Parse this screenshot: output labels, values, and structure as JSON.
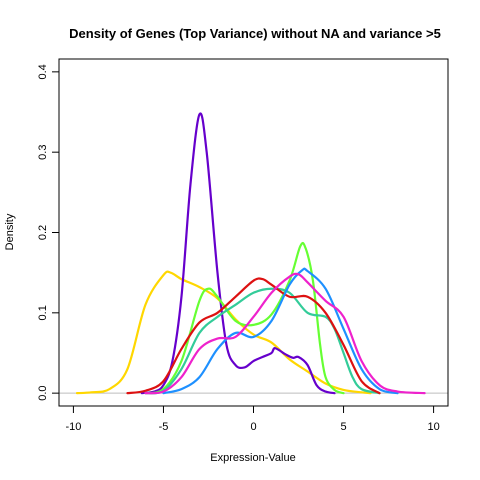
{
  "chart_data": {
    "type": "line",
    "title": "Density of Genes (Top Variance) without NA and variance >5",
    "xlabel": "Expression-Value",
    "ylabel": "Density",
    "xlim": [
      -10.8,
      10.8
    ],
    "ylim": [
      -0.016,
      0.416
    ],
    "x_ticks": [
      -10,
      -5,
      0,
      5,
      10
    ],
    "y_ticks": [
      0.0,
      0.1,
      0.2,
      0.3,
      0.4
    ],
    "x_tick_labels": [
      "-10",
      "-5",
      "0",
      "5",
      "10"
    ],
    "y_tick_labels": [
      "0.0",
      "0.1",
      "0.2",
      "0.3",
      "0.4"
    ],
    "grid": false,
    "baseline_color": "#BEBEBE",
    "series": [
      {
        "color": "#FFD700",
        "points": [
          [
            -9.8,
            0
          ],
          [
            -9,
            0.001
          ],
          [
            -8,
            0.005
          ],
          [
            -7,
            0.03
          ],
          [
            -6,
            0.11
          ],
          [
            -5,
            0.147
          ],
          [
            -4.6,
            0.15
          ],
          [
            -4,
            0.142
          ],
          [
            -3,
            0.132
          ],
          [
            -2,
            0.118
          ],
          [
            -1,
            0.092
          ],
          [
            0,
            0.073
          ],
          [
            1,
            0.063
          ],
          [
            2,
            0.042
          ],
          [
            3,
            0.027
          ],
          [
            4,
            0.012
          ],
          [
            5,
            0.004
          ],
          [
            6,
            0.001
          ],
          [
            6.5,
            0
          ]
        ]
      },
      {
        "color": "#6600CC",
        "points": [
          [
            -6.2,
            0
          ],
          [
            -5.5,
            0.002
          ],
          [
            -5,
            0.01
          ],
          [
            -4.5,
            0.04
          ],
          [
            -4,
            0.12
          ],
          [
            -3.5,
            0.26
          ],
          [
            -3,
            0.347
          ],
          [
            -2.6,
            0.3
          ],
          [
            -2,
            0.15
          ],
          [
            -1.5,
            0.06
          ],
          [
            -1,
            0.035
          ],
          [
            -0.5,
            0.032
          ],
          [
            0,
            0.04
          ],
          [
            0.5,
            0.045
          ],
          [
            1,
            0.05
          ],
          [
            1.2,
            0.056
          ],
          [
            1.8,
            0.048
          ],
          [
            2.2,
            0.044
          ],
          [
            2.5,
            0.045
          ],
          [
            3,
            0.035
          ],
          [
            3.5,
            0.01
          ],
          [
            4,
            0.002
          ],
          [
            4.5,
            0
          ]
        ]
      },
      {
        "color": "#66FF33",
        "points": [
          [
            -6,
            0
          ],
          [
            -5,
            0.005
          ],
          [
            -4,
            0.04
          ],
          [
            -3,
            0.115
          ],
          [
            -2.5,
            0.13
          ],
          [
            -2,
            0.12
          ],
          [
            -1,
            0.09
          ],
          [
            0,
            0.085
          ],
          [
            1,
            0.098
          ],
          [
            2,
            0.14
          ],
          [
            2.6,
            0.183
          ],
          [
            2.9,
            0.18
          ],
          [
            3.3,
            0.14
          ],
          [
            3.7,
            0.06
          ],
          [
            4,
            0.02
          ],
          [
            4.5,
            0.004
          ],
          [
            5,
            0
          ]
        ]
      },
      {
        "color": "#33CC99",
        "points": [
          [
            -6,
            0
          ],
          [
            -5,
            0.003
          ],
          [
            -4,
            0.03
          ],
          [
            -3,
            0.075
          ],
          [
            -2,
            0.095
          ],
          [
            -1,
            0.11
          ],
          [
            0,
            0.125
          ],
          [
            1,
            0.13
          ],
          [
            2,
            0.125
          ],
          [
            3,
            0.1
          ],
          [
            4,
            0.095
          ],
          [
            4.5,
            0.08
          ],
          [
            5,
            0.05
          ],
          [
            5.5,
            0.02
          ],
          [
            6,
            0.005
          ],
          [
            7,
            0
          ]
        ]
      },
      {
        "color": "#DD1111",
        "points": [
          [
            -7,
            0
          ],
          [
            -6,
            0.003
          ],
          [
            -5,
            0.015
          ],
          [
            -4,
            0.055
          ],
          [
            -3,
            0.088
          ],
          [
            -2,
            0.1
          ],
          [
            -1,
            0.12
          ],
          [
            0,
            0.14
          ],
          [
            0.5,
            0.142
          ],
          [
            1,
            0.135
          ],
          [
            2,
            0.12
          ],
          [
            3,
            0.12
          ],
          [
            4,
            0.1
          ],
          [
            5,
            0.06
          ],
          [
            6,
            0.015
          ],
          [
            7,
            0
          ]
        ]
      },
      {
        "color": "#1E90FF",
        "points": [
          [
            -5,
            0
          ],
          [
            -4,
            0.005
          ],
          [
            -3,
            0.02
          ],
          [
            -2,
            0.055
          ],
          [
            -1,
            0.075
          ],
          [
            0,
            0.07
          ],
          [
            1,
            0.09
          ],
          [
            2,
            0.135
          ],
          [
            2.7,
            0.153
          ],
          [
            3,
            0.152
          ],
          [
            4,
            0.13
          ],
          [
            5,
            0.08
          ],
          [
            6,
            0.03
          ],
          [
            7,
            0.005
          ],
          [
            8,
            0
          ]
        ]
      },
      {
        "color": "#EE22CC",
        "points": [
          [
            -6,
            0
          ],
          [
            -5,
            0.002
          ],
          [
            -4,
            0.02
          ],
          [
            -3,
            0.055
          ],
          [
            -2,
            0.068
          ],
          [
            -1,
            0.07
          ],
          [
            0,
            0.095
          ],
          [
            1,
            0.125
          ],
          [
            2,
            0.145
          ],
          [
            2.5,
            0.148
          ],
          [
            3,
            0.138
          ],
          [
            4,
            0.115
          ],
          [
            5,
            0.095
          ],
          [
            6,
            0.04
          ],
          [
            7,
            0.01
          ],
          [
            8,
            0.002
          ],
          [
            9.5,
            0
          ]
        ]
      }
    ]
  }
}
